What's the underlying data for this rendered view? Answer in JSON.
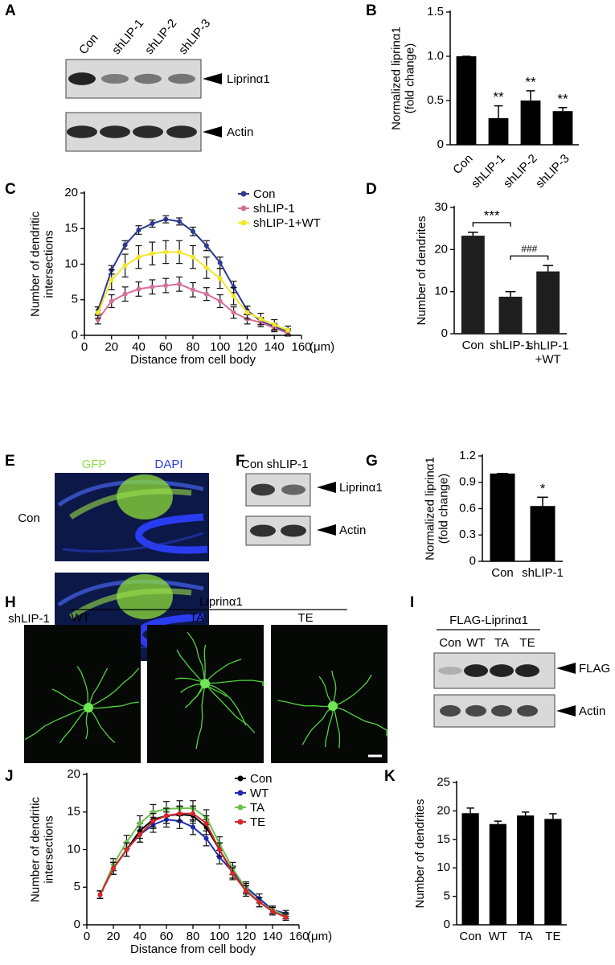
{
  "panel_labels": [
    "A",
    "B",
    "C",
    "D",
    "E",
    "F",
    "G",
    "H",
    "I",
    "J",
    "K"
  ],
  "blot_A": {
    "lanes": [
      "Con",
      "shLIP-1",
      "shLIP-2",
      "shLIP-3"
    ],
    "bands": [
      "Liprinα1",
      "Actin"
    ]
  },
  "images_E": {
    "channels": [
      "GFP",
      "DAPI"
    ],
    "rows": [
      "Con",
      "shLIP-1"
    ]
  },
  "blot_F": {
    "lanes": "Con shLIP-1",
    "bands": [
      "Liprinα1",
      "Actin"
    ]
  },
  "images_H": {
    "group": "Liprinα1",
    "columns": [
      "WT",
      "TA",
      "TE"
    ]
  },
  "blot_I": {
    "group": "FLAG-Liprinα1",
    "lanes": [
      "Con",
      "WT",
      "TA",
      "TE"
    ],
    "bands": [
      "FLAG",
      "Actin"
    ]
  },
  "chart_data": [
    {
      "type": "bar",
      "ylabel": "Normalized liprinα1\n(fold change)",
      "categories": [
        "Con",
        "shLIP-1",
        "shLIP-2",
        "shLIP-3"
      ],
      "values": [
        1,
        0.3,
        0.5,
        0.38
      ],
      "errors": [
        0,
        0.14,
        0.11,
        0.04
      ],
      "annotations": [
        null,
        "**",
        "**",
        "**"
      ],
      "color": "#000000",
      "ylim": [
        0,
        1.5
      ],
      "yticks": [
        0,
        0.5,
        {
          "value": 1,
          "label": "1.0"
        },
        1.5
      ]
    },
    {
      "type": "line",
      "ylabel": "Number of dendritic\nintersections",
      "xlabel": "Distance from cell body",
      "x_unit": "(μm)",
      "x": [
        10,
        20,
        30,
        40,
        50,
        60,
        70,
        80,
        90,
        100,
        110,
        120,
        130,
        140,
        150
      ],
      "series": [
        {
          "name": "Con",
          "color": "#2b3990",
          "values": [
            3.5,
            9.2,
            12.7,
            14.8,
            15.7,
            16.3,
            16,
            14.6,
            12.6,
            10.2,
            6.8,
            3.5,
            2,
            1.2,
            0.5
          ],
          "errors": [
            0.5,
            0.6,
            0.6,
            0.6,
            0.5,
            0.5,
            0.5,
            0.6,
            0.7,
            0.8,
            0.8,
            0.6,
            0.5,
            0.5,
            0.4
          ]
        },
        {
          "name": "shLIP-1",
          "color": "#d4709a",
          "values": [
            2.2,
            4.8,
            5.8,
            6.5,
            6.8,
            7,
            7.2,
            6.4,
            5.8,
            4.8,
            3.2,
            2.3,
            1.8,
            1,
            0.3
          ],
          "errors": [
            0.6,
            0.9,
            1,
            1,
            1,
            1,
            1,
            1,
            0.9,
            0.9,
            0.8,
            0.7,
            0.6,
            0.5,
            0.4
          ]
        },
        {
          "name": "shLIP-1+WT",
          "color": "#f2e52b",
          "values": [
            3.2,
            7.8,
            9.8,
            11,
            11.5,
            11.7,
            11.7,
            11,
            9.5,
            8,
            5.5,
            3.2,
            2.3,
            1.5,
            0.7
          ],
          "errors": [
            0.8,
            1.4,
            1.6,
            1.6,
            1.6,
            1.6,
            1.6,
            1.6,
            1.5,
            1.4,
            1.2,
            0.9,
            0.8,
            0.7,
            0.6
          ]
        }
      ],
      "xlim": [
        0,
        160
      ],
      "xticks": [
        0,
        20,
        40,
        60,
        80,
        100,
        120,
        140,
        160
      ],
      "ylim": [
        0,
        20
      ],
      "yticks": [
        0,
        5,
        10,
        15,
        20
      ]
    },
    {
      "type": "bar",
      "ylabel": "Number of dendrites",
      "categories": [
        "Con",
        "shLIP-1",
        "shLIP-1\n+WT"
      ],
      "values": [
        23.3,
        8.8,
        14.8
      ],
      "errors": [
        0.8,
        1.2,
        1.4
      ],
      "comparisons": [
        "***",
        "###"
      ],
      "color": "#1e1e1e",
      "ylim": [
        0,
        30
      ],
      "yticks": [
        0,
        10,
        20,
        30
      ]
    },
    {
      "type": "bar",
      "ylabel": "Normalized liprinα1\n(fold change)",
      "categories": [
        "Con",
        "shLIP-1"
      ],
      "values": [
        1,
        0.63
      ],
      "errors": [
        0,
        0.1
      ],
      "annotations": [
        null,
        "*"
      ],
      "color": "#000000",
      "ylim": [
        0,
        1.2
      ],
      "yticks": [
        0,
        0.3,
        0.6,
        0.9,
        1.2
      ]
    },
    {
      "type": "line",
      "ylabel": "Number of dendritic\nintersections",
      "xlabel": "Distance from cell body",
      "x_unit": "(μm)",
      "x": [
        10,
        20,
        30,
        40,
        50,
        60,
        70,
        80,
        90,
        100,
        110,
        120,
        130,
        140,
        150
      ],
      "series": [
        {
          "name": "Con",
          "color": "#000000",
          "values": [
            4,
            7.5,
            10,
            12.5,
            14,
            14.5,
            14.7,
            14.5,
            13,
            10,
            7,
            4.5,
            3,
            2,
            1.2
          ],
          "errors": [
            0.5,
            0.8,
            0.9,
            1,
            1,
            1,
            1,
            1,
            1,
            0.9,
            0.8,
            0.7,
            0.6,
            0.5,
            0.4
          ]
        },
        {
          "name": "WT",
          "color": "#1f2bb0",
          "values": [
            4,
            7.5,
            10,
            12,
            13.3,
            14,
            13.8,
            13,
            11.5,
            9,
            7,
            5,
            3.5,
            2,
            1.5
          ],
          "errors": [
            0.5,
            0.8,
            0.9,
            1,
            1,
            1,
            1,
            1,
            1,
            0.9,
            0.8,
            0.7,
            0.6,
            0.5,
            0.4
          ]
        },
        {
          "name": "TA",
          "color": "#6cc04a",
          "values": [
            4,
            8,
            11,
            13.5,
            15,
            15.4,
            15.5,
            15.5,
            14.3,
            10.8,
            7.5,
            4.8,
            3,
            2,
            1.2
          ],
          "errors": [
            0.5,
            0.8,
            0.9,
            1,
            1,
            1,
            1,
            1,
            1,
            0.9,
            0.8,
            0.7,
            0.6,
            0.5,
            0.4
          ]
        },
        {
          "name": "TE",
          "color": "#d7262c",
          "values": [
            4,
            7.5,
            10,
            12,
            13.8,
            14.5,
            14.8,
            14.8,
            13.5,
            10,
            6.8,
            4.5,
            3,
            1.8,
            1
          ],
          "errors": [
            0.5,
            0.8,
            0.9,
            1,
            1,
            1,
            1,
            1,
            1,
            0.9,
            0.8,
            0.7,
            0.6,
            0.5,
            0.4
          ]
        }
      ],
      "xlim": [
        0,
        160
      ],
      "xticks": [
        0,
        20,
        40,
        60,
        80,
        100,
        120,
        140,
        160
      ],
      "ylim": [
        0,
        20
      ],
      "yticks": [
        0,
        5,
        10,
        15,
        20
      ]
    },
    {
      "type": "bar",
      "ylabel": "Number of dendrites",
      "categories": [
        "Con",
        "WT",
        "TA",
        "TE"
      ],
      "values": [
        19.6,
        17.7,
        19.2,
        18.6
      ],
      "errors": [
        0.9,
        0.5,
        0.6,
        0.9
      ],
      "color": "#000000",
      "ylim": [
        0,
        25
      ],
      "yticks": [
        0,
        5,
        10,
        15,
        20,
        25
      ]
    }
  ]
}
